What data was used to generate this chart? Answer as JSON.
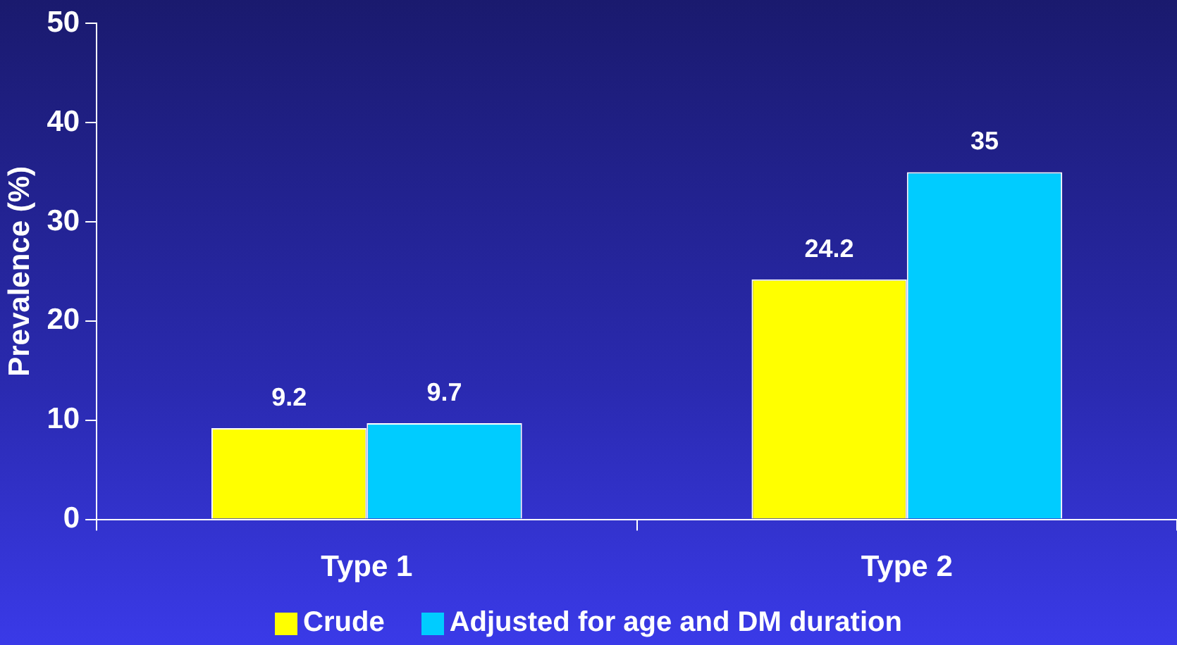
{
  "chart_data": {
    "type": "bar",
    "ylabel": "Prevalence (%)",
    "categories": [
      "Type 1",
      "Type 2"
    ],
    "series": [
      {
        "name": "Crude",
        "color": "#ffff00",
        "values": [
          9.2,
          24.2
        ]
      },
      {
        "name": "Adjusted for age and DM duration",
        "color": "#00ccff",
        "values": [
          9.7,
          35
        ]
      }
    ],
    "ylim": [
      0,
      50
    ],
    "yticks": [
      0,
      10,
      20,
      30,
      40,
      50
    ],
    "grid": false,
    "legend": "bottom",
    "data_labels": true
  }
}
